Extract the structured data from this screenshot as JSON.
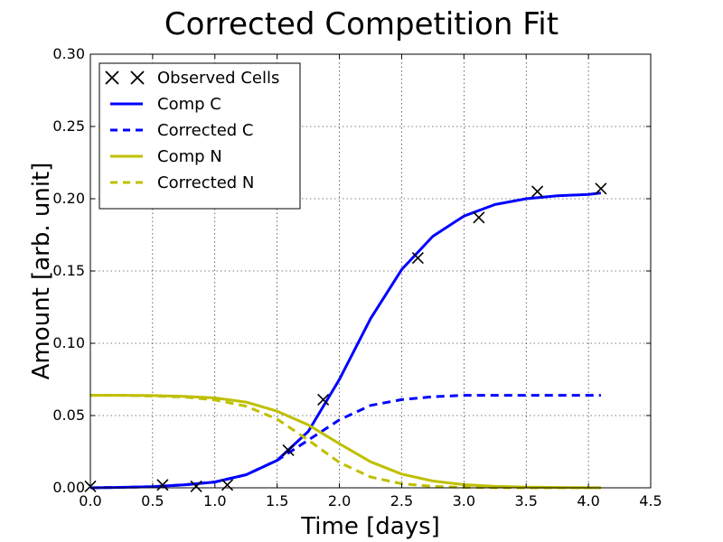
{
  "chart_data": {
    "type": "line",
    "title": "Corrected Competition Fit",
    "xlabel": "Time [days]",
    "ylabel": "Amount [arb. unit]",
    "xlim": [
      0.0,
      4.5
    ],
    "ylim": [
      0.0,
      0.3
    ],
    "xticks": [
      0.0,
      0.5,
      1.0,
      1.5,
      2.0,
      2.5,
      3.0,
      3.5,
      4.0,
      4.5
    ],
    "yticks": [
      0.0,
      0.05,
      0.1,
      0.15,
      0.2,
      0.25,
      0.3
    ],
    "xtick_labels": [
      "0.0",
      "0.5",
      "1.0",
      "1.5",
      "2.0",
      "2.5",
      "3.0",
      "3.5",
      "4.0",
      "4.5"
    ],
    "ytick_labels": [
      "0.00",
      "0.05",
      "0.10",
      "0.15",
      "0.20",
      "0.25",
      "0.30"
    ],
    "grid": true,
    "legend_position": "top-left",
    "series": [
      {
        "name": "Observed Cells",
        "kind": "scatter",
        "marker": "x",
        "color": "#000000",
        "x": [
          0.0,
          0.58,
          0.85,
          1.1,
          1.59,
          1.87,
          2.63,
          3.12,
          3.59,
          4.1
        ],
        "y": [
          0.001,
          0.002,
          0.001,
          0.002,
          0.026,
          0.061,
          0.159,
          0.187,
          0.205,
          0.207
        ]
      },
      {
        "name": "Comp C",
        "kind": "line",
        "style": "solid",
        "color": "#0000ff",
        "x": [
          0.0,
          0.25,
          0.5,
          0.75,
          1.0,
          1.25,
          1.5,
          1.75,
          2.0,
          2.25,
          2.5,
          2.75,
          3.0,
          3.25,
          3.5,
          3.75,
          4.0,
          4.1
        ],
        "y": [
          0.0,
          0.0003,
          0.0008,
          0.002,
          0.004,
          0.009,
          0.019,
          0.039,
          0.075,
          0.117,
          0.151,
          0.174,
          0.188,
          0.196,
          0.2,
          0.202,
          0.203,
          0.204
        ]
      },
      {
        "name": "Corrected C",
        "kind": "line",
        "style": "dashed",
        "color": "#0000ff",
        "x": [
          0.0,
          0.25,
          0.5,
          0.75,
          1.0,
          1.25,
          1.5,
          1.75,
          2.0,
          2.25,
          2.5,
          2.75,
          3.0,
          3.25,
          3.5,
          3.75,
          4.0,
          4.1
        ],
        "y": [
          0.0,
          0.0003,
          0.0008,
          0.002,
          0.004,
          0.009,
          0.019,
          0.033,
          0.047,
          0.057,
          0.061,
          0.063,
          0.064,
          0.064,
          0.064,
          0.064,
          0.064,
          0.064
        ]
      },
      {
        "name": "Comp N",
        "kind": "line",
        "style": "solid",
        "color": "#bfbf00",
        "x": [
          0.0,
          0.25,
          0.5,
          0.75,
          1.0,
          1.25,
          1.5,
          1.75,
          2.0,
          2.25,
          2.5,
          2.75,
          3.0,
          3.25,
          3.5,
          3.75,
          4.0,
          4.1
        ],
        "y": [
          0.064,
          0.064,
          0.0638,
          0.0633,
          0.0622,
          0.0593,
          0.053,
          0.0435,
          0.0305,
          0.018,
          0.0095,
          0.0047,
          0.0022,
          0.001,
          0.0005,
          0.0002,
          0.0001,
          0.0001
        ]
      },
      {
        "name": "Corrected N",
        "kind": "line",
        "style": "dashed",
        "color": "#bfbf00",
        "x": [
          0.0,
          0.25,
          0.5,
          0.75,
          1.0,
          1.25,
          1.5,
          1.75,
          2.0,
          2.25,
          2.5,
          2.75,
          3.0,
          3.25,
          3.5,
          3.75,
          4.0,
          4.1
        ],
        "y": [
          0.064,
          0.064,
          0.0635,
          0.0628,
          0.0608,
          0.0565,
          0.0475,
          0.033,
          0.0175,
          0.0075,
          0.0028,
          0.001,
          0.0003,
          0.0001,
          0.0,
          0.0,
          0.0,
          0.0
        ]
      }
    ]
  }
}
